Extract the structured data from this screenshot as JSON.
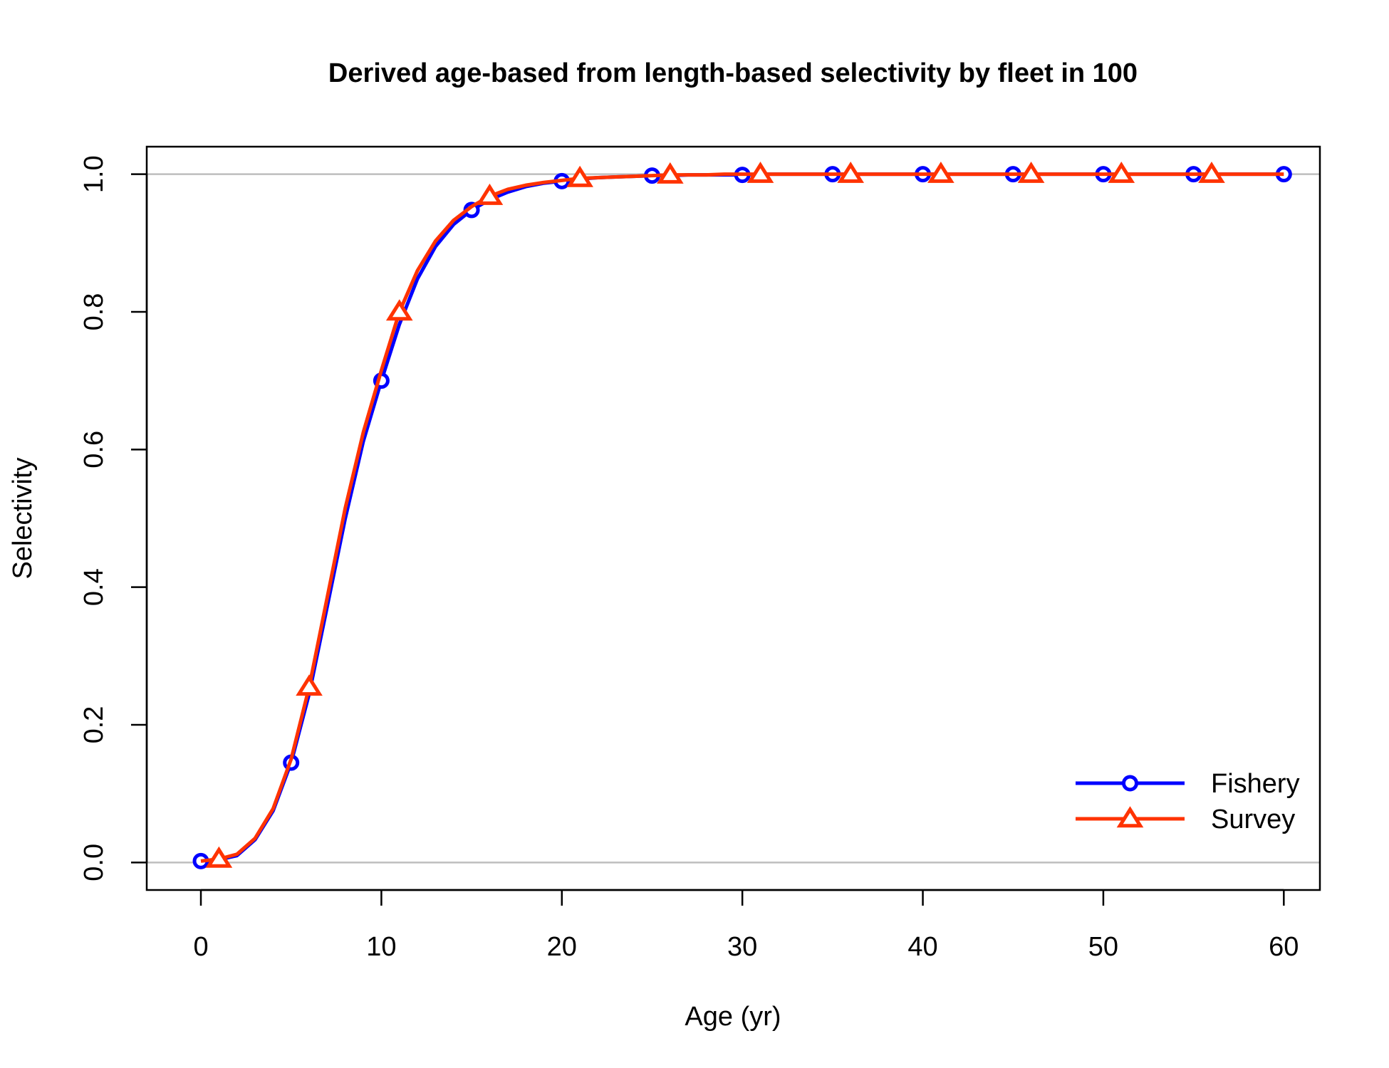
{
  "chart_data": {
    "type": "line",
    "title": "Derived age-based from length-based selectivity by fleet in 100",
    "xlabel": "Age (yr)",
    "ylabel": "Selectivity",
    "xlim": [
      -3,
      62
    ],
    "ylim": [
      -0.04,
      1.04
    ],
    "x_ticks": [
      0,
      10,
      20,
      30,
      40,
      50,
      60
    ],
    "y_ticks": [
      0.0,
      0.2,
      0.4,
      0.6,
      0.8,
      1.0
    ],
    "x_tick_labels": [
      "0",
      "10",
      "20",
      "30",
      "40",
      "50",
      "60"
    ],
    "y_tick_labels": [
      "0.0",
      "0.2",
      "0.4",
      "0.6",
      "0.8",
      "1.0"
    ],
    "reference_lines_y": [
      0,
      1
    ],
    "reference_line_color": "#bebebe",
    "legend_position": "bottom-right",
    "x": [
      0,
      1,
      2,
      3,
      4,
      5,
      6,
      7,
      8,
      9,
      10,
      11,
      12,
      13,
      14,
      15,
      16,
      17,
      18,
      19,
      20,
      21,
      22,
      23,
      24,
      25,
      26,
      27,
      28,
      29,
      30,
      31,
      32,
      33,
      34,
      35,
      36,
      37,
      38,
      39,
      40,
      41,
      42,
      43,
      44,
      45,
      46,
      47,
      48,
      49,
      50,
      51,
      52,
      53,
      54,
      55,
      56,
      57,
      58,
      59,
      60
    ],
    "series": [
      {
        "name": "Fishery",
        "color": "#0000ff",
        "marker": "circle",
        "marker_every": 5,
        "marker_offset": 0,
        "values": [
          0.002,
          0.004,
          0.01,
          0.033,
          0.075,
          0.145,
          0.245,
          0.372,
          0.5,
          0.612,
          0.7,
          0.782,
          0.848,
          0.895,
          0.927,
          0.948,
          0.963,
          0.974,
          0.982,
          0.987,
          0.99,
          0.993,
          0.995,
          0.996,
          0.997,
          0.998,
          0.998,
          0.999,
          0.999,
          0.999,
          0.999,
          1,
          1,
          1,
          1,
          1,
          1,
          1,
          1,
          1,
          1,
          1,
          1,
          1,
          1,
          1,
          1,
          1,
          1,
          1,
          1,
          1,
          1,
          1,
          1,
          1,
          1,
          1,
          1,
          1,
          1
        ]
      },
      {
        "name": "Survey",
        "color": "#ff3300",
        "marker": "triangle",
        "marker_every": 5,
        "marker_offset": 1,
        "values": [
          0.002,
          0.005,
          0.012,
          0.035,
          0.078,
          0.15,
          0.255,
          0.385,
          0.515,
          0.625,
          0.715,
          0.8,
          0.86,
          0.903,
          0.933,
          0.953,
          0.968,
          0.978,
          0.984,
          0.988,
          0.991,
          0.994,
          0.995,
          0.996,
          0.997,
          0.998,
          0.999,
          0.999,
          0.999,
          1,
          1,
          1,
          1,
          1,
          1,
          1,
          1,
          1,
          1,
          1,
          1,
          1,
          1,
          1,
          1,
          1,
          1,
          1,
          1,
          1,
          1,
          1,
          1,
          1,
          1,
          1,
          1,
          1,
          1,
          1,
          1
        ]
      }
    ]
  }
}
